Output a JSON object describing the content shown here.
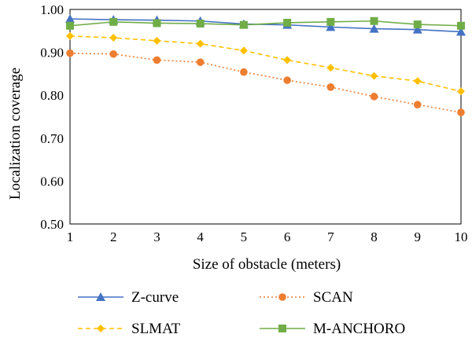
{
  "chart_data": {
    "type": "line",
    "xlabel": "Size of obstacle (meters)",
    "ylabel": "Localization coverage",
    "x": [
      1,
      2,
      3,
      4,
      5,
      6,
      7,
      8,
      9,
      10
    ],
    "xlim": [
      1,
      10
    ],
    "ylim": [
      0.5,
      1.0
    ],
    "yticks": [
      "0.50",
      "0.60",
      "0.70",
      "0.80",
      "0.90",
      "1.00"
    ],
    "xticks": [
      "1",
      "2",
      "3",
      "4",
      "5",
      "6",
      "7",
      "8",
      "9",
      "10"
    ],
    "grid": false,
    "legend_position": "bottom",
    "series": [
      {
        "name": "Z-curve",
        "color": "#4472c4",
        "marker": "triangle",
        "line_style": "solid",
        "values": [
          0.978,
          0.976,
          0.975,
          0.973,
          0.966,
          0.964,
          0.959,
          0.955,
          0.953,
          0.948
        ]
      },
      {
        "name": "SCAN",
        "color": "#ed7d31",
        "marker": "circle",
        "line_style": "dotted",
        "values": [
          0.898,
          0.896,
          0.882,
          0.877,
          0.854,
          0.835,
          0.819,
          0.797,
          0.778,
          0.76
        ]
      },
      {
        "name": "SLMAT",
        "color": "#ffc000",
        "marker": "diamond",
        "line_style": "dashed",
        "values": [
          0.938,
          0.934,
          0.927,
          0.92,
          0.904,
          0.882,
          0.864,
          0.845,
          0.833,
          0.809
        ]
      },
      {
        "name": "M-ANCHORO",
        "color": "#70ad47",
        "marker": "square",
        "line_style": "solid",
        "values": [
          0.962,
          0.971,
          0.968,
          0.967,
          0.964,
          0.969,
          0.971,
          0.973,
          0.965,
          0.962
        ]
      }
    ]
  }
}
